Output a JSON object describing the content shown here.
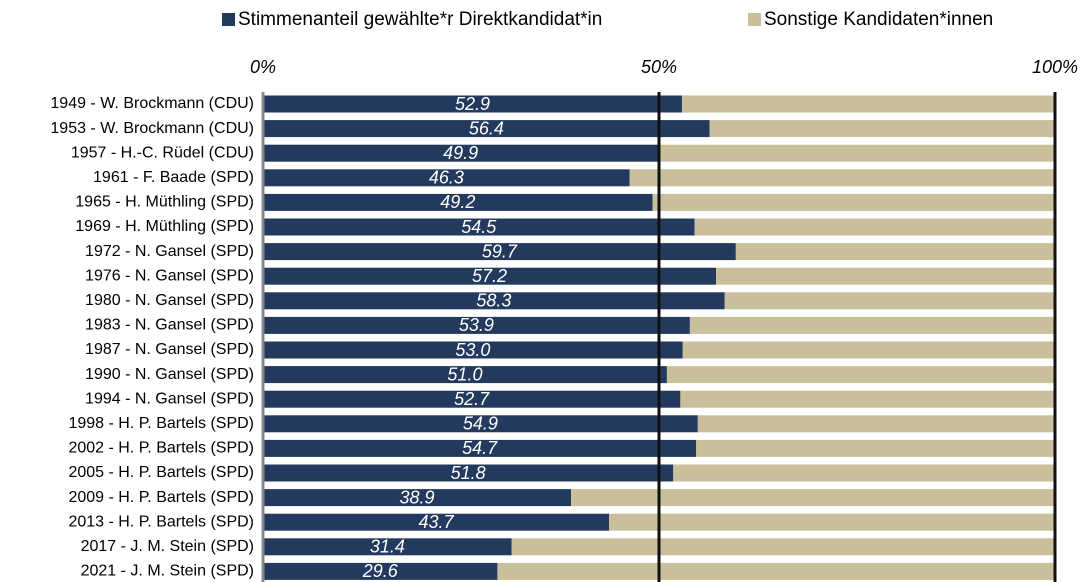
{
  "chart_data": {
    "type": "stacked-barh",
    "categories": [
      "1949 - W. Brockmann (CDU)",
      "1953 - W. Brockmann (CDU)",
      "1957 - H.-C. Rüdel (CDU)",
      "1961 - F. Baade (SPD)",
      "1965 - H. Müthling (SPD)",
      "1969 - H. Müthling (SPD)",
      "1972 - N. Gansel (SPD)",
      "1976 - N. Gansel (SPD)",
      "1980 - N. Gansel (SPD)",
      "1983 - N. Gansel (SPD)",
      "1987 - N. Gansel (SPD)",
      "1990 - N. Gansel (SPD)",
      "1994 - N. Gansel (SPD)",
      "1998 - H. P. Bartels (SPD)",
      "2002 - H. P. Bartels (SPD)",
      "2005 - H. P. Bartels (SPD)",
      "2009 - H. P. Bartels (SPD)",
      "2013 - H. P. Bartels (SPD)",
      "2017 - J. M. Stein (SPD)",
      "2021 - J. M. Stein (SPD)"
    ],
    "series": [
      {
        "name": "Stimmenanteil gewählte*r Direktkandidat*in",
        "color": "#233a5e",
        "values": [
          52.9,
          56.4,
          49.9,
          46.3,
          49.2,
          54.5,
          59.7,
          57.2,
          58.3,
          53.9,
          53.0,
          51.0,
          52.7,
          54.9,
          54.7,
          51.8,
          38.9,
          43.7,
          31.4,
          29.6
        ],
        "value_labels": [
          "52.9",
          "56.4",
          "49.9",
          "46.3",
          "49.2",
          "54.5",
          "59.7",
          "57.2",
          "58.3",
          "53.9",
          "53.0",
          "51.0",
          "52.7",
          "54.9",
          "54.7",
          "51.8",
          "38.9",
          "43.7",
          "31.4",
          "29.6"
        ]
      },
      {
        "name": "Sonstige Kandidaten*innen",
        "color": "#c9bf9b",
        "values": [
          47.1,
          43.6,
          50.1,
          53.7,
          50.8,
          45.5,
          40.3,
          42.8,
          41.7,
          46.1,
          47.0,
          49.0,
          47.3,
          45.1,
          45.3,
          48.2,
          61.1,
          56.3,
          68.6,
          70.4
        ]
      }
    ],
    "xlim": [
      0,
      100
    ],
    "xticks": [
      {
        "value": 0,
        "label": "0%"
      },
      {
        "value": 50,
        "label": "50%"
      },
      {
        "value": 100,
        "label": "100%"
      }
    ],
    "grid": true
  }
}
